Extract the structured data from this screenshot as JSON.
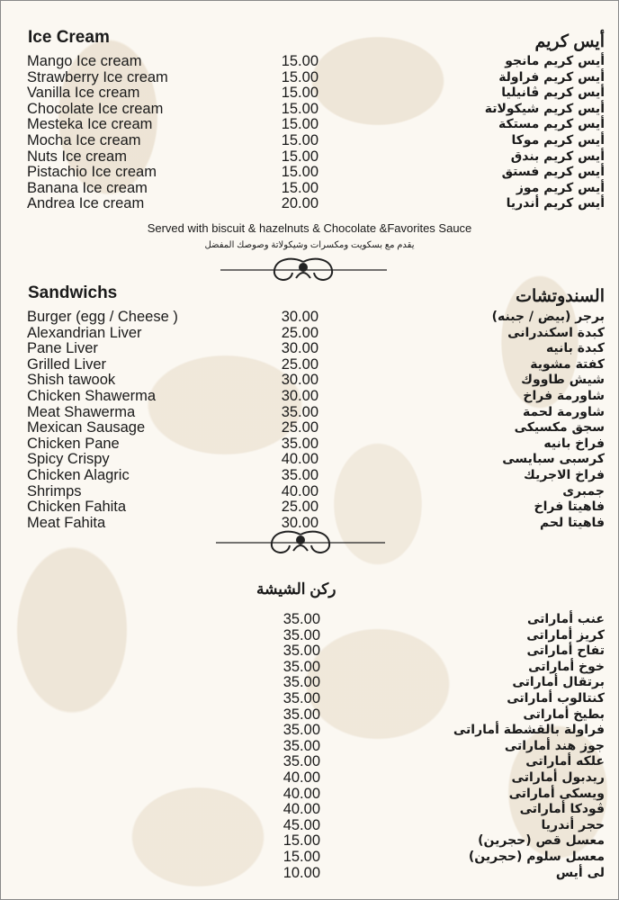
{
  "ice_cream": {
    "title_en": "Ice Cream",
    "title_ar": "أيس كريم",
    "items": [
      {
        "en": "Mango Ice cream",
        "price": "15.00",
        "ar": "أيس كريم مانجو"
      },
      {
        "en": "Strawberry Ice cream",
        "price": "15.00",
        "ar": "أيس كريم فراولة"
      },
      {
        "en": "Vanilla Ice cream",
        "price": "15.00",
        "ar": "أيس كريم ڤانيليا"
      },
      {
        "en": "Chocolate Ice cream",
        "price": "15.00",
        "ar": "أيس كريم شيكولاتة"
      },
      {
        "en": "Mesteka Ice cream",
        "price": "15.00",
        "ar": "أيس كريم مستكة"
      },
      {
        "en": "Mocha Ice cream",
        "price": "15.00",
        "ar": "أيس كريم موكا"
      },
      {
        "en": "Nuts Ice cream",
        "price": "15.00",
        "ar": "أيس كريم بندق"
      },
      {
        "en": "Pistachio Ice cream",
        "price": "15.00",
        "ar": "أيس كريم فستق"
      },
      {
        "en": "Banana Ice cream",
        "price": "15.00",
        "ar": "أيس كريم موز"
      },
      {
        "en": "Andrea Ice cream",
        "price": "20.00",
        "ar": "أيس كريم أندريا"
      }
    ],
    "note_en": "Served with biscuit & hazelnuts & Chocolate &Favorites Sauce",
    "note_ar": "يقدم مع بسكويت ومكسرات وشيكولاتة وصوصك المفضل"
  },
  "sandwiches": {
    "title_en": "Sandwichs",
    "title_ar": "السندوتشات",
    "items": [
      {
        "en": "Burger (egg / Cheese )",
        "price": "30.00",
        "ar": "برجر (بيض / جبنه)"
      },
      {
        "en": "Alexandrian Liver",
        "price": "25.00",
        "ar": "كبدة اسكندرانى"
      },
      {
        "en": "Pane Liver",
        "price": "30.00",
        "ar": "كبدة بانيه"
      },
      {
        "en": "Grilled Liver",
        "price": "25.00",
        "ar": "كفتة مشوية"
      },
      {
        "en": "Shish tawook",
        "price": "30.00",
        "ar": "شيش طاووك"
      },
      {
        "en": "Chicken Shawerma",
        "price": "30.00",
        "ar": "شاورمة فراخ"
      },
      {
        "en": "Meat Shawerma",
        "price": "35.00",
        "ar": "شاورمة لحمة"
      },
      {
        "en": "Mexican Sausage",
        "price": "25.00",
        "ar": "سجق مكسيكى"
      },
      {
        "en": "Chicken Pane",
        "price": "35.00",
        "ar": "فراخ بانيه"
      },
      {
        "en": "Spicy Crispy",
        "price": "40.00",
        "ar": "كرسبى سبايسى"
      },
      {
        "en": "Chicken Alagric",
        "price": "35.00",
        "ar": "فراخ الاجريك"
      },
      {
        "en": "Shrimps",
        "price": "40.00",
        "ar": "جمبرى"
      },
      {
        "en": "Chicken Fahita",
        "price": "25.00",
        "ar": "فاهيتا فراخ"
      },
      {
        "en": "Meat Fahita",
        "price": "30.00",
        "ar": "فاهيتا لحم"
      }
    ]
  },
  "shisha": {
    "title_ar": "ركن الشيشة",
    "items": [
      {
        "price": "35.00",
        "ar": "عنب أماراتى"
      },
      {
        "price": "35.00",
        "ar": "كريز أماراتى"
      },
      {
        "price": "35.00",
        "ar": "تفاح أماراتى"
      },
      {
        "price": "35.00",
        "ar": "خوخ أماراتى"
      },
      {
        "price": "35.00",
        "ar": "برتقال أماراتى"
      },
      {
        "price": "35.00",
        "ar": "كنتالوب أماراتى"
      },
      {
        "price": "35.00",
        "ar": "بطيخ أماراتى"
      },
      {
        "price": "35.00",
        "ar": "فراولة بالقشطة أماراتى"
      },
      {
        "price": "35.00",
        "ar": "جوز هند أماراتى"
      },
      {
        "price": "35.00",
        "ar": "علكه أماراتى"
      },
      {
        "price": "40.00",
        "ar": "ريدبول أماراتى"
      },
      {
        "price": "40.00",
        "ar": "ويسكى أماراتى"
      },
      {
        "price": "40.00",
        "ar": "ڤودكا أماراتى"
      },
      {
        "price": "45.00",
        "ar": "حجر أندريا"
      },
      {
        "price": "15.00",
        "ar": "معسل قص (حجرين)"
      },
      {
        "price": "15.00",
        "ar": "معسل سلوم (حجرين)"
      },
      {
        "price": "10.00",
        "ar": "لى أيس"
      }
    ]
  },
  "colors": {
    "background": "#fbf8f2",
    "pattern": "#e2d4be",
    "text": "#1a1a1a"
  }
}
